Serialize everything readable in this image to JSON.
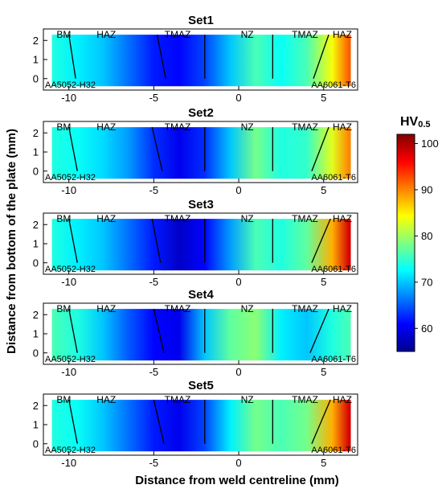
{
  "chart_data": {
    "type": "heatmap",
    "panels": [
      {
        "title": "Set1",
        "zone_labels": [
          "BM",
          "HAZ",
          "TMAZ",
          "NZ",
          "TMAZ",
          "HAZ"
        ],
        "material_labels": [
          "AA5052-H32",
          "AA6061-T6"
        ],
        "hardness_profile_by_x": [
          [
            -11,
            74
          ],
          [
            -9.5,
            72
          ],
          [
            -8,
            70
          ],
          [
            -6.5,
            66
          ],
          [
            -5,
            62
          ],
          [
            -3.5,
            61
          ],
          [
            -2,
            64
          ],
          [
            -0.5,
            70
          ],
          [
            1,
            76
          ],
          [
            2.5,
            73
          ],
          [
            4,
            76
          ],
          [
            5.5,
            84
          ],
          [
            6.5,
            92
          ]
        ],
        "boundaries": [
          [
            -10,
            2.3,
            -9.6,
            0
          ],
          [
            -4.8,
            2.3,
            -4.3,
            0
          ],
          [
            -2,
            2.3,
            -2,
            0
          ],
          [
            2,
            2.3,
            2,
            0
          ],
          [
            4.4,
            0,
            5.3,
            2.3
          ]
        ]
      },
      {
        "title": "Set2",
        "zone_labels": [
          "BM",
          "HAZ",
          "TMAZ",
          "NZ",
          "TMAZ",
          "HAZ"
        ],
        "material_labels": [
          "AA5052-H32",
          "AA6061-T6"
        ],
        "hardness_profile_by_x": [
          [
            -11,
            74
          ],
          [
            -9.5,
            73
          ],
          [
            -8,
            71
          ],
          [
            -6.5,
            68
          ],
          [
            -5,
            63
          ],
          [
            -3.5,
            60
          ],
          [
            -2,
            63
          ],
          [
            -0.5,
            70
          ],
          [
            1,
            78
          ],
          [
            2.5,
            74
          ],
          [
            4,
            75
          ],
          [
            5.5,
            83
          ],
          [
            6.5,
            90
          ]
        ],
        "boundaries": [
          [
            -10,
            2.3,
            -9.5,
            0
          ],
          [
            -5.1,
            2.3,
            -4.5,
            0
          ],
          [
            -2,
            2.3,
            -2,
            0
          ],
          [
            2,
            2.3,
            2,
            0
          ],
          [
            4.3,
            0,
            5.3,
            2.3
          ]
        ]
      },
      {
        "title": "Set3",
        "zone_labels": [
          "BM",
          "HAZ",
          "TMAZ",
          "NZ",
          "TMAZ",
          "HAZ"
        ],
        "material_labels": [
          "AA5052-H32",
          "AA6061-T6"
        ],
        "hardness_profile_by_x": [
          [
            -11,
            74
          ],
          [
            -9.5,
            72
          ],
          [
            -8,
            70
          ],
          [
            -6.5,
            66
          ],
          [
            -5,
            62
          ],
          [
            -3.5,
            58
          ],
          [
            -2,
            61
          ],
          [
            -0.5,
            68
          ],
          [
            1,
            76
          ],
          [
            2.5,
            74
          ],
          [
            4,
            77
          ],
          [
            5.5,
            88
          ],
          [
            6.5,
            98
          ]
        ],
        "boundaries": [
          [
            -10,
            2.3,
            -9.5,
            0
          ],
          [
            -5.1,
            2.3,
            -4.6,
            0
          ],
          [
            -2,
            2.3,
            -2,
            0
          ],
          [
            2,
            2.3,
            2,
            0
          ],
          [
            4.3,
            0,
            5.4,
            2.3
          ]
        ]
      },
      {
        "title": "Set4",
        "zone_labels": [
          "BM",
          "HAZ",
          "TMAZ",
          "NZ",
          "TMAZ",
          "HAZ"
        ],
        "material_labels": [
          "AA5052-H32",
          "AA6061-T6"
        ],
        "hardness_profile_by_x": [
          [
            -11,
            76
          ],
          [
            -9.5,
            74
          ],
          [
            -8,
            70
          ],
          [
            -6.5,
            65
          ],
          [
            -5,
            61
          ],
          [
            -3.5,
            60
          ],
          [
            -2,
            70
          ],
          [
            -0.5,
            77
          ],
          [
            1,
            79
          ],
          [
            2.5,
            72
          ],
          [
            4,
            70
          ],
          [
            5.5,
            74
          ],
          [
            6.5,
            76
          ]
        ],
        "boundaries": [
          [
            -10,
            2.3,
            -9.5,
            0
          ],
          [
            -5,
            2.3,
            -4.4,
            0
          ],
          [
            -2,
            2.3,
            -2,
            0
          ],
          [
            2,
            2.3,
            2,
            0
          ],
          [
            4.2,
            0,
            5.3,
            2.3
          ]
        ]
      },
      {
        "title": "Set5",
        "zone_labels": [
          "BM",
          "HAZ",
          "TMAZ",
          "NZ",
          "TMAZ",
          "HAZ"
        ],
        "material_labels": [
          "AA5052-H32",
          "AA6061-T6"
        ],
        "hardness_profile_by_x": [
          [
            -11,
            74
          ],
          [
            -9.5,
            73
          ],
          [
            -8,
            70
          ],
          [
            -6.5,
            66
          ],
          [
            -5,
            62
          ],
          [
            -3.5,
            60
          ],
          [
            -2,
            64
          ],
          [
            -0.5,
            72
          ],
          [
            1,
            78
          ],
          [
            2.5,
            76
          ],
          [
            4,
            78
          ],
          [
            5.5,
            88
          ],
          [
            6.5,
            98
          ]
        ],
        "boundaries": [
          [
            -10,
            2.3,
            -9.5,
            0
          ],
          [
            -5,
            2.3,
            -4.4,
            0
          ],
          [
            -2,
            2.3,
            -2,
            0
          ],
          [
            2,
            2.3,
            2,
            0
          ],
          [
            4.3,
            0,
            5.4,
            2.3
          ]
        ]
      }
    ],
    "xlabel": "Distance from weld centreline (mm)",
    "ylabel": "Distance from bottom of the plate (mm)",
    "x_ticks": [
      -10,
      -5,
      0,
      5
    ],
    "y_ticks": [
      0,
      1,
      2
    ],
    "xlim": [
      -11.5,
      7
    ],
    "ylim": [
      -0.6,
      2.6
    ],
    "data_extent_x": [
      -11,
      6.6
    ],
    "data_extent_y": [
      -0.4,
      2.3
    ],
    "colorbar": {
      "title": "HV",
      "subscript": "0.5",
      "ticks": [
        60,
        70,
        80,
        90,
        100
      ],
      "range": [
        55,
        102
      ],
      "colormap": [
        "#00008f",
        "#0000ff",
        "#0080ff",
        "#00ffff",
        "#80ff80",
        "#ffff00",
        "#ff8000",
        "#ff0000",
        "#800000"
      ]
    }
  }
}
